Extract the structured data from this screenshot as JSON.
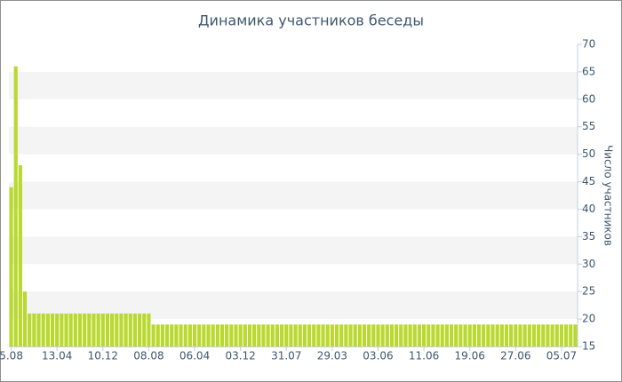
{
  "chart_data": {
    "type": "bar",
    "title": "Динамика участников беседы",
    "y_axis_label": "Число участников",
    "categories": [
      "5.08",
      null,
      null,
      null,
      null,
      null,
      null,
      null,
      null,
      null,
      "13.04",
      null,
      null,
      null,
      null,
      null,
      null,
      null,
      null,
      null,
      "10.12",
      null,
      null,
      null,
      null,
      null,
      null,
      null,
      null,
      null,
      "08.08",
      null,
      null,
      null,
      null,
      null,
      null,
      null,
      null,
      null,
      "06.04",
      null,
      null,
      null,
      null,
      null,
      null,
      null,
      null,
      null,
      "03.12",
      null,
      null,
      null,
      null,
      null,
      null,
      null,
      null,
      null,
      "31.07",
      null,
      null,
      null,
      null,
      null,
      null,
      null,
      null,
      null,
      "29.03",
      null,
      null,
      null,
      null,
      null,
      null,
      null,
      null,
      null,
      "03.06",
      null,
      null,
      null,
      null,
      null,
      null,
      null,
      null,
      null,
      "11.06",
      null,
      null,
      null,
      null,
      null,
      null,
      null,
      null,
      null,
      "19.06",
      null,
      null,
      null,
      null,
      null,
      null,
      null,
      null,
      null,
      "27.06",
      null,
      null,
      null,
      null,
      null,
      null,
      null,
      null,
      null,
      "05.07",
      null,
      null,
      null
    ],
    "values": [
      44,
      66,
      48,
      25,
      21,
      21,
      21,
      21,
      21,
      21,
      21,
      21,
      21,
      21,
      21,
      21,
      21,
      21,
      21,
      21,
      21,
      21,
      21,
      21,
      21,
      21,
      21,
      21,
      21,
      21,
      21,
      19,
      19,
      19,
      19,
      19,
      19,
      19,
      19,
      19,
      19,
      19,
      19,
      19,
      19,
      19,
      19,
      19,
      19,
      19,
      19,
      19,
      19,
      19,
      19,
      19,
      19,
      19,
      19,
      19,
      19,
      19,
      19,
      19,
      19,
      19,
      19,
      19,
      19,
      19,
      19,
      19,
      19,
      19,
      19,
      19,
      19,
      19,
      19,
      19,
      19,
      19,
      19,
      19,
      19,
      19,
      19,
      19,
      19,
      19,
      19,
      19,
      19,
      19,
      19,
      19,
      19,
      19,
      19,
      19,
      19,
      19,
      19,
      19,
      19,
      19,
      19,
      19,
      19,
      19,
      19,
      19,
      19,
      19,
      19,
      19,
      19,
      19,
      19,
      19,
      19,
      19,
      19,
      19
    ],
    "color": "#b9d930",
    "ylim": [
      15,
      70
    ],
    "yticks": [
      15,
      20,
      25,
      30,
      35,
      40,
      45,
      50,
      55,
      60,
      65,
      70
    ],
    "y_axis_side": "right",
    "grid_bands": true
  }
}
